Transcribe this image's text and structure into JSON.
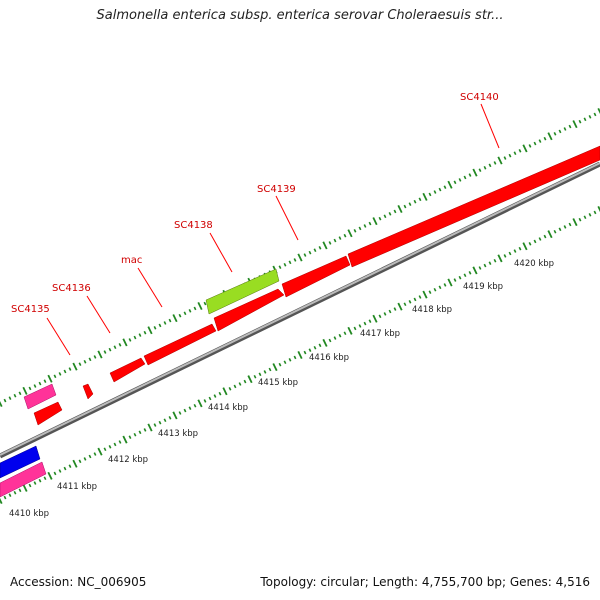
{
  "title": "Salmonella enterica subsp. enterica serovar Choleraesuis str...",
  "footer": {
    "accession": "Accession: NC_006905",
    "summary": "Topology: circular; Length: 4,755,700 bp; Genes: 4,516"
  },
  "colors": {
    "cds_forward": "#ff0000",
    "cds_highlight": "#99dd22",
    "cds_reverse_pink": "#ff3399",
    "cds_reverse_blue": "#0000ee",
    "backbone": "#888888",
    "ticks": "#228822",
    "gene_label": "#d00000"
  },
  "gene_labels": [
    {
      "name": "SC4135"
    },
    {
      "name": "SC4136"
    },
    {
      "name": "mac"
    },
    {
      "name": "SC4138"
    },
    {
      "name": "SC4139"
    },
    {
      "name": "SC4140"
    }
  ],
  "scale_labels": [
    "4410 kbp",
    "4411 kbp",
    "4412 kbp",
    "4413 kbp",
    "4414 kbp",
    "4415 kbp",
    "4416 kbp",
    "4417 kbp",
    "4418 kbp",
    "4419 kbp",
    "4420 kbp"
  ]
}
